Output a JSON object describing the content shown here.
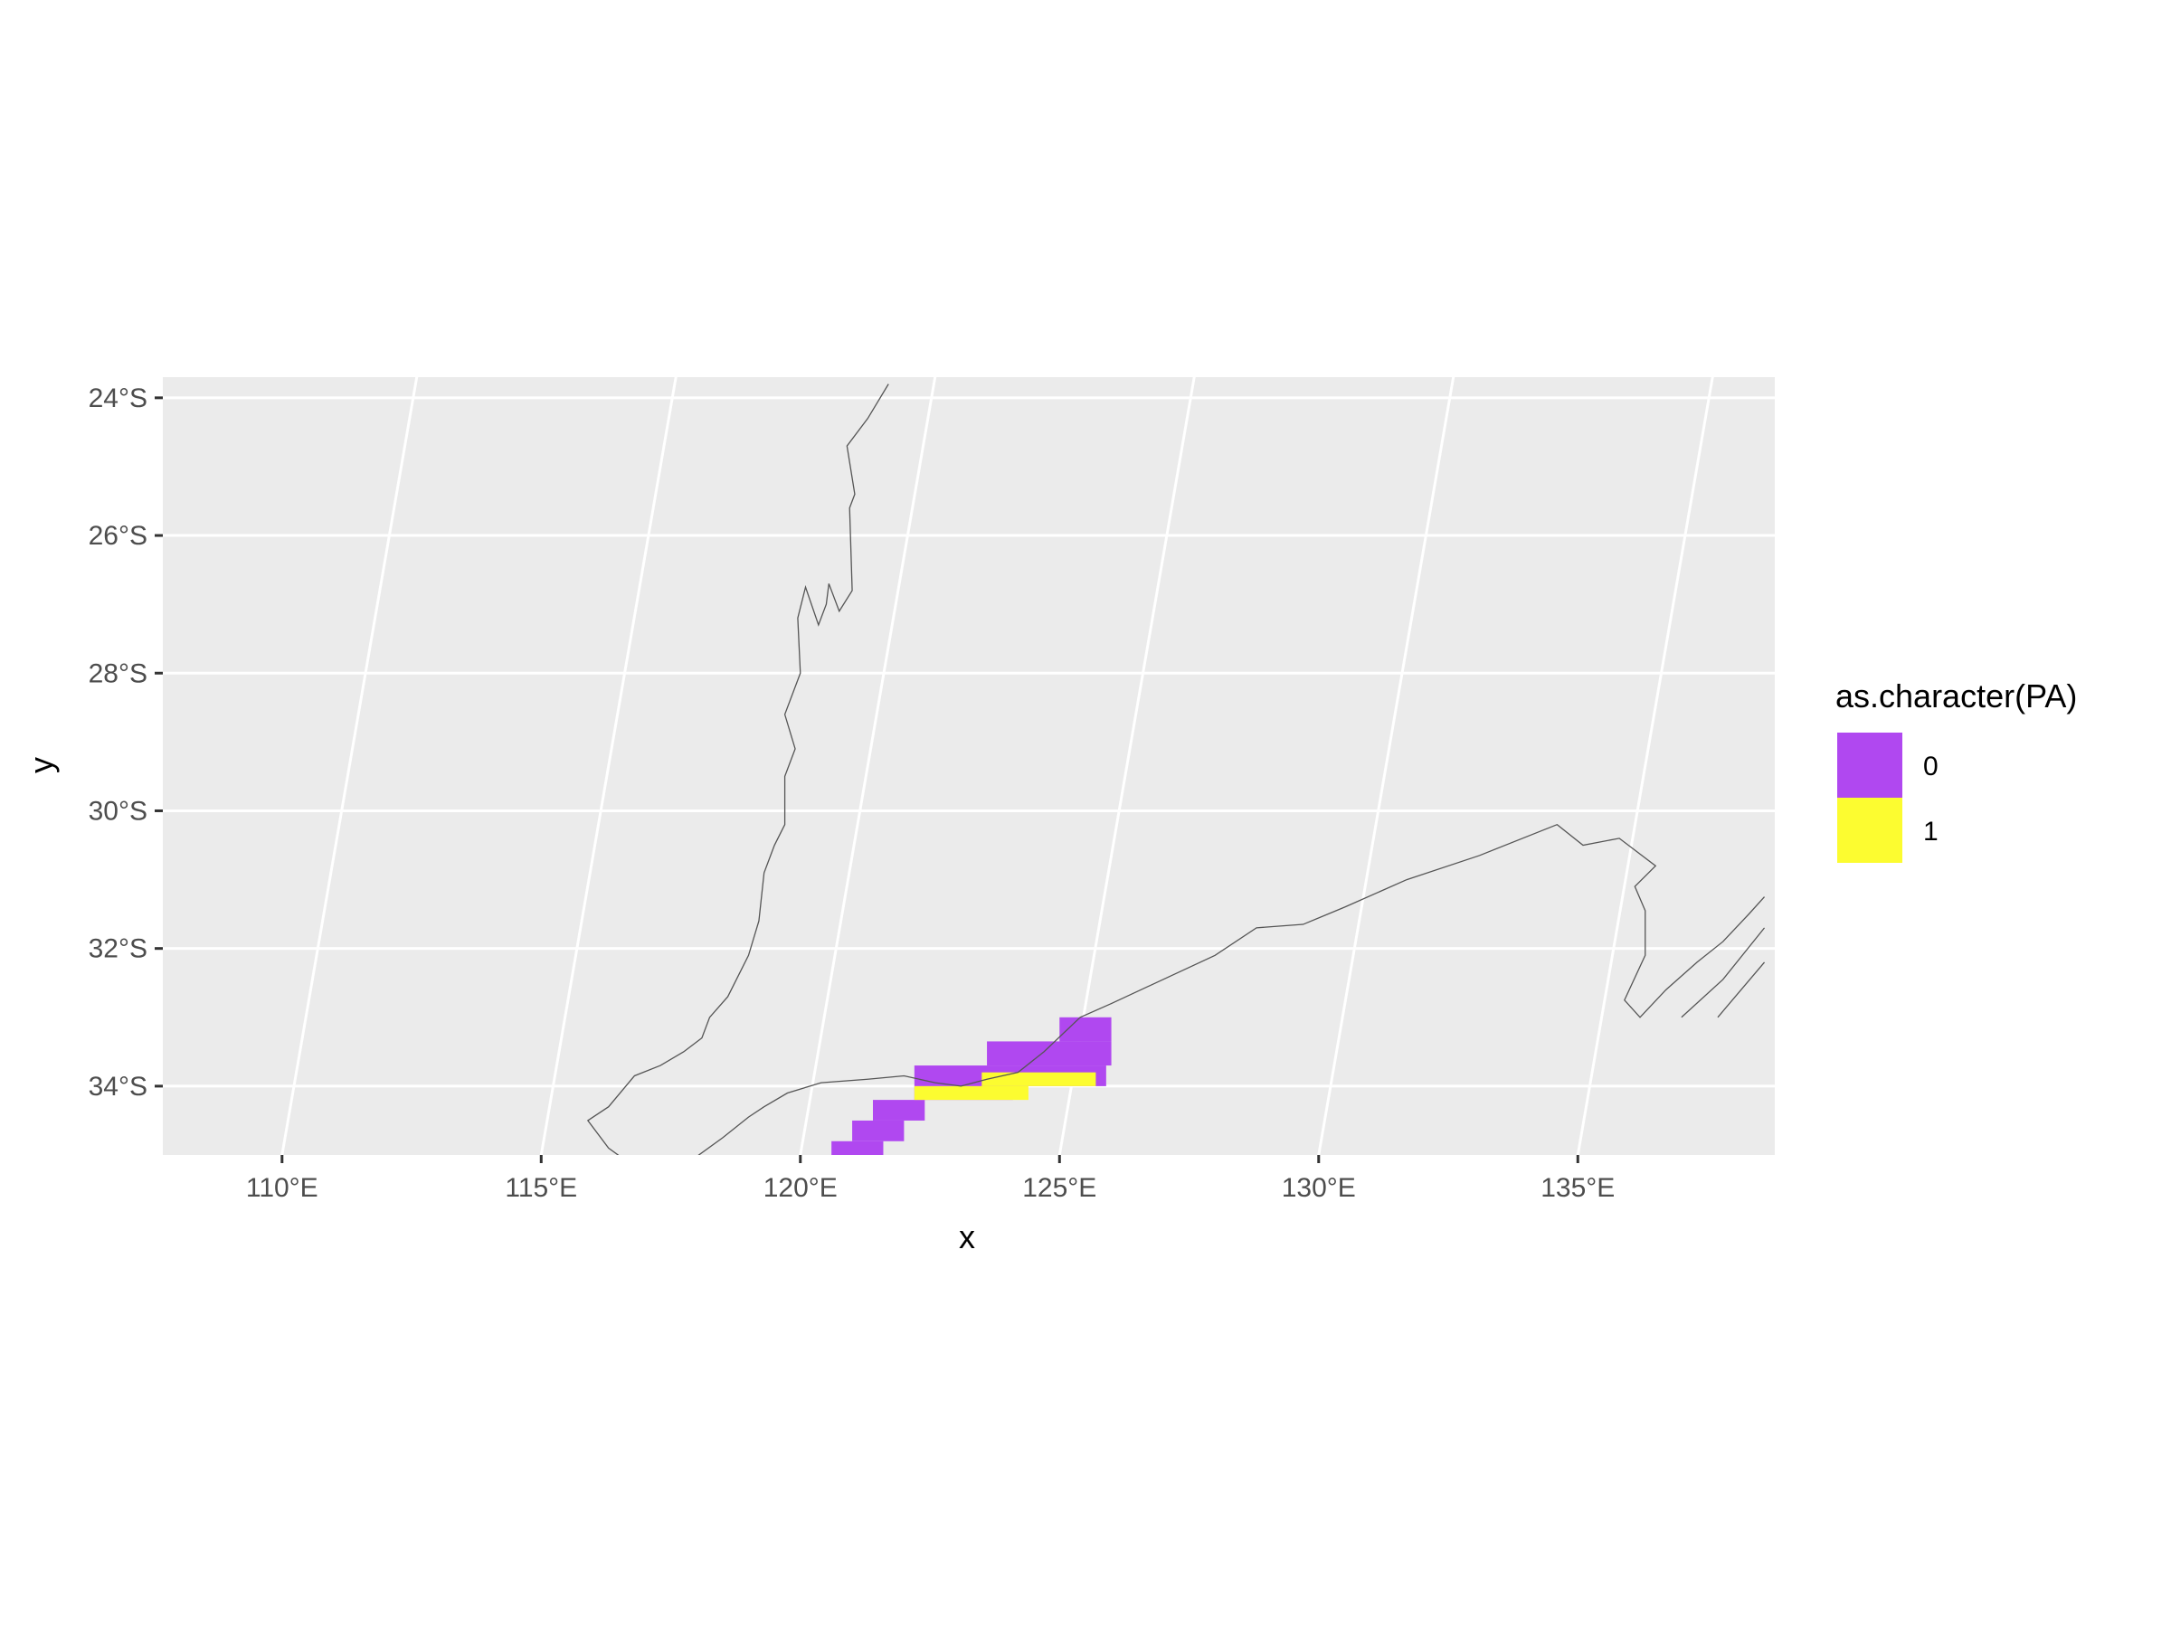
{
  "chart_data": {
    "type": "heatmap",
    "xlabel": "x",
    "ylabel": "y",
    "x_ticks": [
      {
        "value": 110,
        "label": "110°E"
      },
      {
        "value": 115,
        "label": "115°E"
      },
      {
        "value": 120,
        "label": "120°E"
      },
      {
        "value": 125,
        "label": "125°E"
      },
      {
        "value": 130,
        "label": "130°E"
      },
      {
        "value": 135,
        "label": "135°E"
      }
    ],
    "y_ticks": [
      {
        "value": -24,
        "label": "24°S"
      },
      {
        "value": -26,
        "label": "26°S"
      },
      {
        "value": -28,
        "label": "28°S"
      },
      {
        "value": -30,
        "label": "30°S"
      },
      {
        "value": -32,
        "label": "32°S"
      },
      {
        "value": -34,
        "label": "34°S"
      }
    ],
    "xlim": [
      107.7,
      138.8
    ],
    "ylim": [
      -35.0,
      -23.7
    ],
    "panel_background": "#ebebeb",
    "grid": true,
    "legend": {
      "title": "as.character(PA)",
      "position": "right",
      "entries": [
        {
          "label": "0",
          "color": "#b048f0"
        },
        {
          "label": "1",
          "color": "#fcfc30"
        }
      ]
    },
    "coastline": [
      [
        [
          121.7,
          -23.8
        ],
        [
          121.3,
          -24.3
        ],
        [
          120.9,
          -24.7
        ],
        [
          121.05,
          -25.4
        ],
        [
          120.95,
          -25.6
        ],
        [
          121.0,
          -26.8
        ],
        [
          120.75,
          -27.1
        ],
        [
          120.55,
          -26.7
        ],
        [
          120.5,
          -27.0
        ],
        [
          120.35,
          -27.3
        ],
        [
          120.1,
          -26.75
        ],
        [
          119.95,
          -27.2
        ],
        [
          120.0,
          -28.0
        ],
        [
          119.7,
          -28.6
        ],
        [
          119.9,
          -29.1
        ],
        [
          119.7,
          -29.5
        ],
        [
          119.7,
          -30.2
        ],
        [
          119.5,
          -30.5
        ],
        [
          119.3,
          -30.9
        ],
        [
          119.2,
          -31.6
        ],
        [
          119.0,
          -32.1
        ],
        [
          118.6,
          -32.7
        ],
        [
          118.25,
          -33.0
        ],
        [
          118.1,
          -33.3
        ],
        [
          117.75,
          -33.5
        ],
        [
          117.3,
          -33.7
        ],
        [
          116.8,
          -33.85
        ],
        [
          116.3,
          -34.3
        ],
        [
          115.9,
          -34.5
        ],
        [
          116.3,
          -34.9
        ],
        [
          116.85,
          -35.2
        ],
        [
          117.4,
          -35.2
        ],
        [
          117.95,
          -35.05
        ],
        [
          118.5,
          -34.75
        ],
        [
          119.0,
          -34.45
        ],
        [
          119.3,
          -34.3
        ],
        [
          119.75,
          -34.1
        ],
        [
          120.4,
          -33.95
        ],
        [
          121.3,
          -33.9
        ],
        [
          122.0,
          -33.85
        ],
        [
          122.6,
          -33.95
        ],
        [
          123.1,
          -34.0
        ],
        [
          123.6,
          -33.9
        ],
        [
          124.2,
          -33.8
        ],
        [
          124.7,
          -33.5
        ],
        [
          125.4,
          -33.0
        ],
        [
          126.0,
          -32.8
        ],
        [
          127.0,
          -32.45
        ],
        [
          128.0,
          -32.1
        ],
        [
          128.8,
          -31.7
        ],
        [
          129.7,
          -31.65
        ],
        [
          130.5,
          -31.4
        ],
        [
          131.7,
          -31.0
        ],
        [
          133.1,
          -30.65
        ],
        [
          134.6,
          -30.2
        ],
        [
          135.1,
          -30.5
        ],
        [
          135.8,
          -30.4
        ],
        [
          136.5,
          -30.8
        ],
        [
          136.1,
          -31.1
        ],
        [
          136.3,
          -31.45
        ],
        [
          136.3,
          -32.1
        ],
        [
          135.9,
          -32.75
        ],
        [
          136.2,
          -33.0
        ],
        [
          136.7,
          -32.6
        ],
        [
          137.3,
          -32.2
        ],
        [
          137.8,
          -31.9
        ],
        [
          138.3,
          -31.5
        ],
        [
          138.6,
          -31.25
        ]
      ],
      [
        [
          137.0,
          -33.0
        ],
        [
          137.8,
          -32.45
        ],
        [
          138.6,
          -31.7
        ]
      ],
      [
        [
          137.7,
          -33.0
        ],
        [
          138.6,
          -32.2
        ]
      ]
    ],
    "cells_0": [
      [
        125.0,
        -33.35,
        126.0,
        -33.0
      ],
      [
        123.6,
        -33.7,
        126.0,
        -33.35
      ],
      [
        122.2,
        -34.0,
        125.9,
        -33.7
      ],
      [
        122.2,
        -34.2,
        124.1,
        -34.0
      ],
      [
        121.4,
        -34.5,
        122.4,
        -34.2
      ],
      [
        121.0,
        -34.8,
        122.0,
        -34.5
      ],
      [
        120.6,
        -35.2,
        121.6,
        -34.8
      ],
      [
        120.4,
        -35.4,
        120.8,
        -35.2
      ]
    ],
    "cells_1": [
      [
        122.2,
        -34.2,
        124.4,
        -34.0
      ],
      [
        123.5,
        -34.0,
        125.7,
        -33.8
      ]
    ]
  }
}
